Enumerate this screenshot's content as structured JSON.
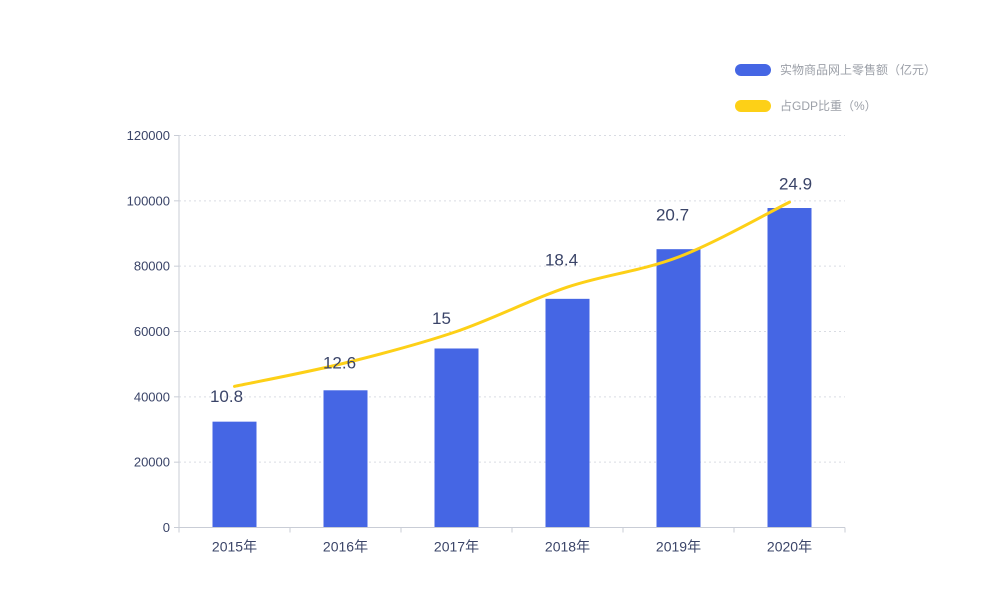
{
  "page": {
    "background_color": "#ffffff"
  },
  "legend": {
    "position": "top-right",
    "items": [
      {
        "id": "retail",
        "label": "实物商品网上零售额（亿元）",
        "swatch_color": "#4566e4",
        "swatch_shape": "pill"
      },
      {
        "id": "gdp",
        "label": "占GDP比重（%）",
        "swatch_color": "#fdd017",
        "swatch_shape": "pill"
      }
    ]
  },
  "chart_data": {
    "type": "combo-bar-line",
    "title": "",
    "categories": [
      "2015年",
      "2016年",
      "2017年",
      "2018年",
      "2019年",
      "2020年"
    ],
    "series": [
      {
        "name": "实物商品网上零售额（亿元）",
        "type": "bar",
        "axis": "left",
        "color": "#4566e4",
        "values": [
          32400,
          42000,
          54800,
          70000,
          85200,
          97800
        ],
        "data_labels_shown": false
      },
      {
        "name": "占GDP比重（%）",
        "type": "line",
        "axis": "right",
        "color": "#fdd017",
        "smooth": true,
        "values": [
          10.8,
          12.6,
          15,
          18.4,
          20.7,
          24.9
        ],
        "data_labels": [
          "10.8",
          "12.6",
          "15",
          "18.4",
          "20.7",
          "24.9"
        ],
        "data_labels_shown": true
      }
    ],
    "left_axis": {
      "min": 0,
      "max": 120000,
      "tick_step": 20000,
      "tick_labels": [
        "0",
        "20000",
        "40000",
        "60000",
        "80000",
        "100000",
        "120000"
      ]
    },
    "right_axis": {
      "min": 0,
      "max": 30,
      "visible": false
    },
    "grid": {
      "horizontal": true,
      "style": "dotted",
      "vertical": false
    },
    "legend_position": "top-right"
  },
  "colors": {
    "bar": "#4566e4",
    "line": "#fdd017",
    "axis_text": "#3a4468",
    "data_label_text": "#3a4468",
    "legend_text": "#9ca0a8",
    "axis_line": "#c9cdd6",
    "gridline": "#d9dce3"
  }
}
